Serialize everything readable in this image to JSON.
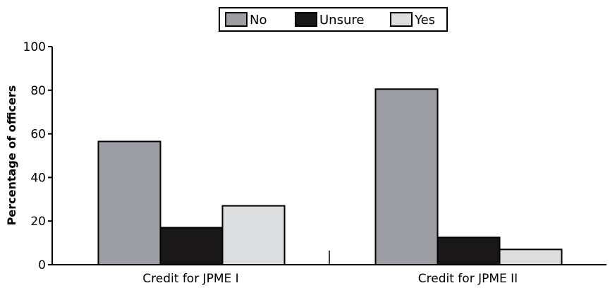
{
  "chart_data": {
    "type": "bar",
    "categories": [
      "Credit for JPME I",
      "Credit for JPME II"
    ],
    "series": [
      {
        "name": "No",
        "values": [
          56.5,
          80.5
        ],
        "color": "#9d9ea3"
      },
      {
        "name": "Unsure",
        "values": [
          17,
          12.5
        ],
        "color": "#1a1718"
      },
      {
        "name": "Yes",
        "values": [
          27,
          7
        ],
        "color": "#dcdddf"
      }
    ],
    "title": "",
    "xlabel": "",
    "ylabel": "Percentage of officers",
    "ylim": [
      0,
      100
    ],
    "yticks": [
      0,
      20,
      40,
      60,
      80,
      100
    ],
    "grid": false,
    "legend_position": "top-center"
  }
}
